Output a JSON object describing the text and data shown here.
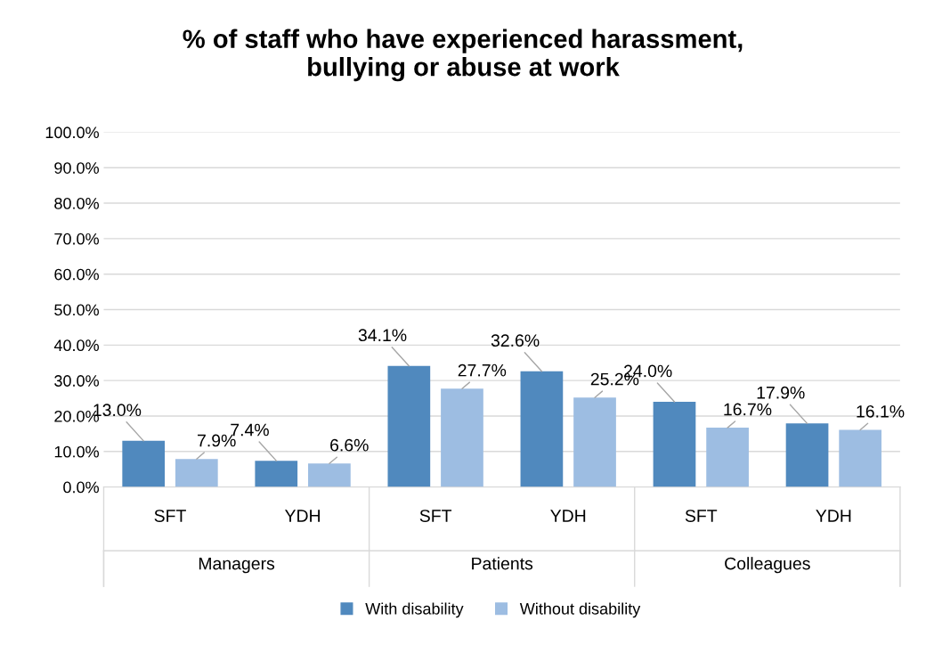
{
  "chart_data": {
    "type": "bar",
    "title": "% of staff who have experienced harassment,\nbullying or abuse at work",
    "categories": [
      "SFT",
      "YDH",
      "SFT",
      "YDH",
      "SFT",
      "YDH"
    ],
    "series": [
      {
        "name": "With disability",
        "color": "#5089be",
        "values": [
          13.0,
          7.4,
          34.1,
          32.6,
          24.0,
          17.9
        ],
        "value_labels": [
          "13.0%",
          "7.4%",
          "34.1%",
          "32.6%",
          "24.0%",
          "17.9%"
        ]
      },
      {
        "name": "Without disability",
        "color": "#9dbde2",
        "values": [
          7.9,
          6.6,
          27.7,
          25.2,
          16.7,
          16.1
        ],
        "value_labels": [
          "7.9%",
          "6.6%",
          "27.7%",
          "25.2%",
          "16.7%",
          "16.1%"
        ]
      }
    ],
    "annotations": [
      "Managers",
      "Patients",
      "Colleagues"
    ],
    "ylim": [
      0,
      100
    ],
    "yticks": [
      {
        "value": 0,
        "label": "0.0%"
      },
      {
        "value": 10,
        "label": "10.0%"
      },
      {
        "value": 20,
        "label": "20.0%"
      },
      {
        "value": 30,
        "label": "30.0%"
      },
      {
        "value": 40,
        "label": "40.0%"
      },
      {
        "value": 50,
        "label": "50.0%"
      },
      {
        "value": 60,
        "label": "60.0%"
      },
      {
        "value": 70,
        "label": "70.0%"
      },
      {
        "value": 80,
        "label": "80.0%"
      },
      {
        "value": 90,
        "label": "90.0%"
      },
      {
        "value": 100,
        "label": "100.0%"
      }
    ],
    "grid": "y",
    "legend": "bottom"
  }
}
